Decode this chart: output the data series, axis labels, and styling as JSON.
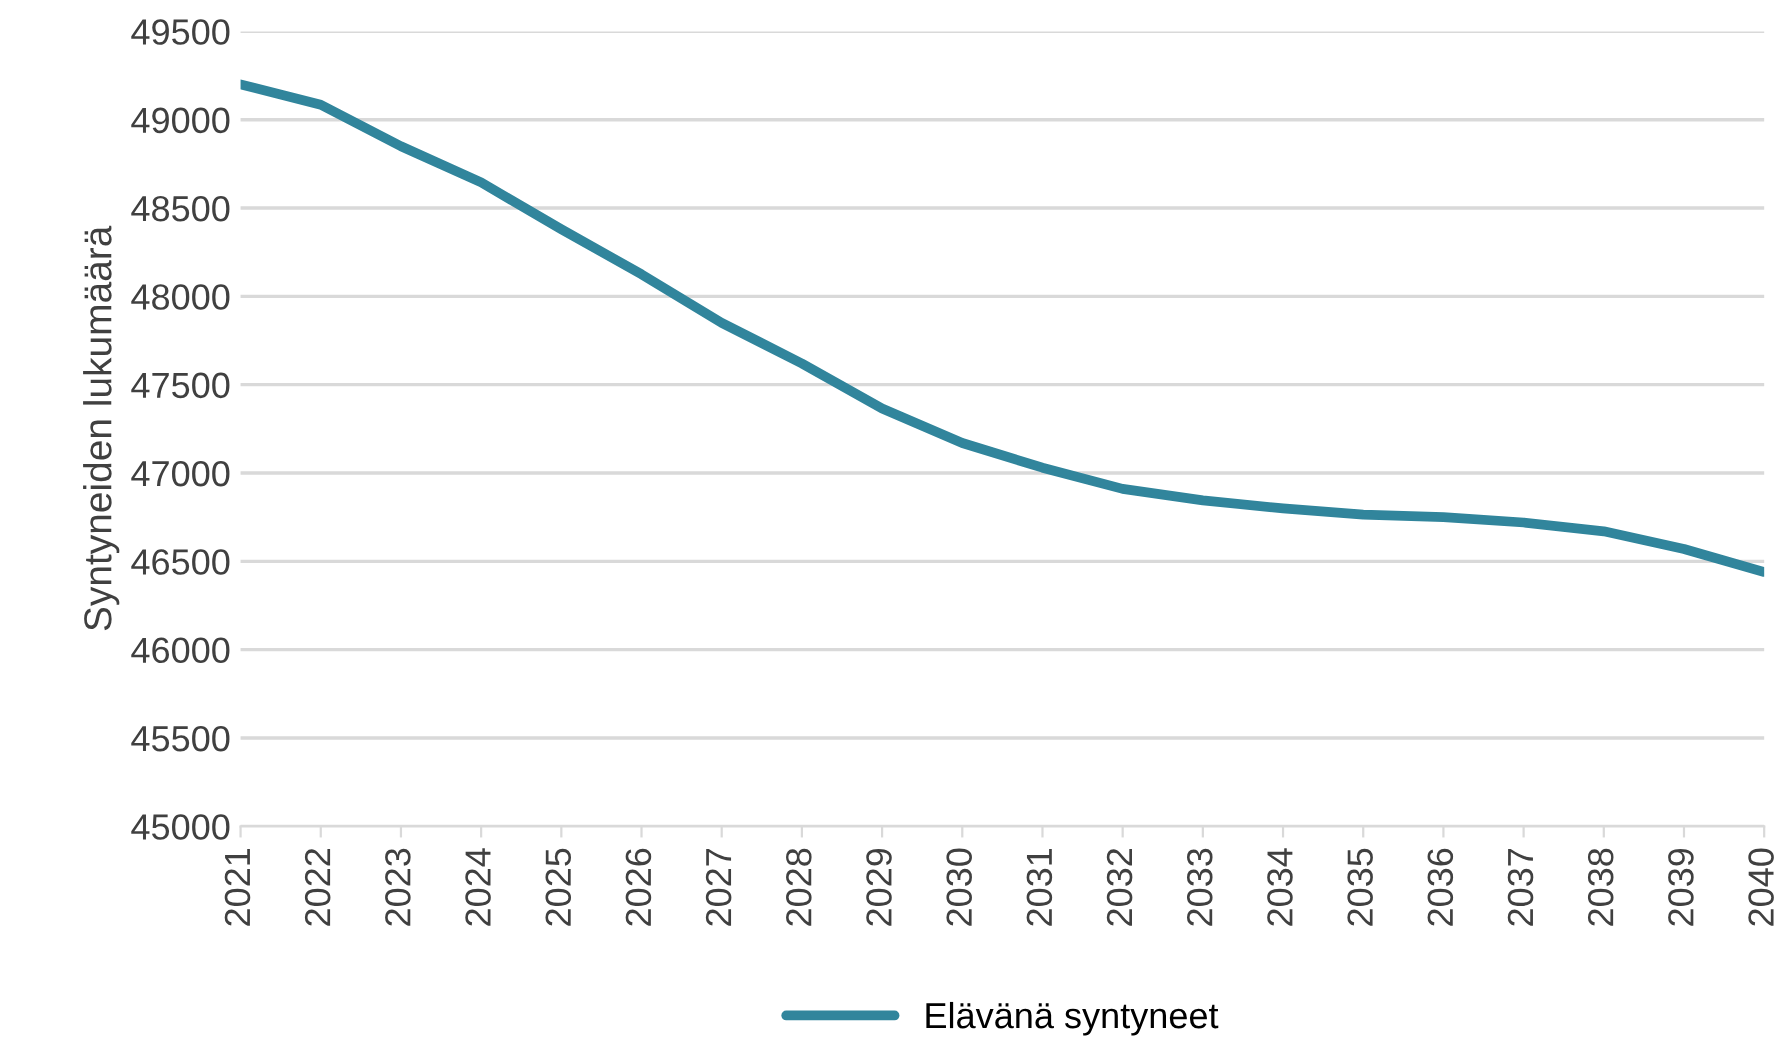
{
  "chart_data": {
    "type": "line",
    "ylabel": "Syntyneiden lukumäärä",
    "categories": [
      "2021",
      "2022",
      "2023",
      "2024",
      "2025",
      "2026",
      "2027",
      "2028",
      "2029",
      "2030",
      "2031",
      "2032",
      "2033",
      "2034",
      "2035",
      "2036",
      "2037",
      "2038",
      "2039",
      "2040"
    ],
    "series": [
      {
        "name": "Elävänä syntyneet",
        "color": "#31859c",
        "values": [
          49200,
          49085,
          48850,
          48645,
          48380,
          48125,
          47850,
          47620,
          47365,
          47170,
          47030,
          46910,
          46845,
          46800,
          46765,
          46750,
          46720,
          46670,
          46570,
          46440
        ]
      }
    ],
    "ylim": [
      45000,
      49500
    ],
    "yticks": [
      45000,
      45500,
      46000,
      46500,
      47000,
      47500,
      48000,
      48500,
      49000,
      49500
    ],
    "grid": "y",
    "legend": "bottom",
    "marker": "none",
    "line_style": "solid"
  }
}
